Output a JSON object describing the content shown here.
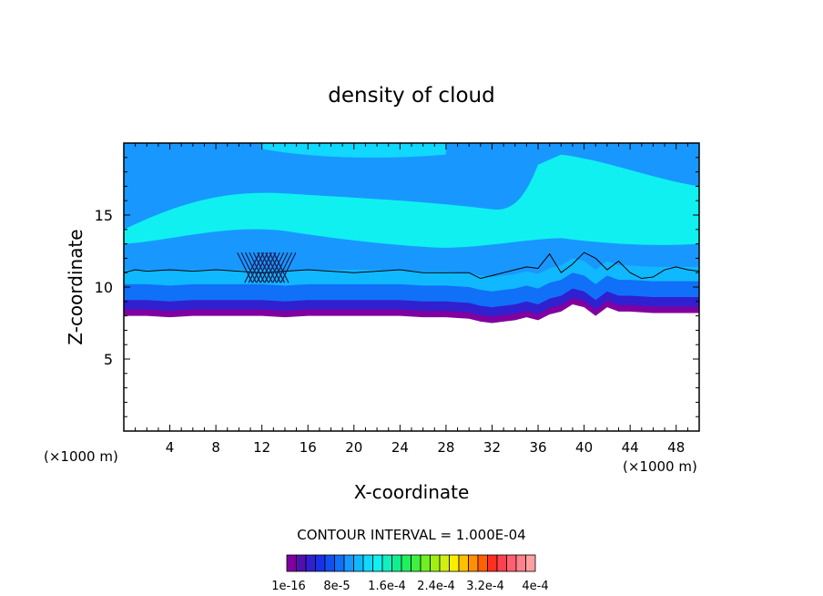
{
  "chart_data": {
    "type": "heatmap",
    "title": "density of cloud",
    "xlabel": "X-coordinate",
    "ylabel": "Z-coordinate",
    "x_unit_left": "(×1000 m)",
    "x_unit_right": "(×1000 m)",
    "xlim": [
      0,
      50
    ],
    "ylim": [
      0,
      20
    ],
    "x_ticks": [
      "4",
      "8",
      "12",
      "16",
      "20",
      "24",
      "28",
      "32",
      "36",
      "40",
      "44",
      "48"
    ],
    "y_ticks": [
      "5",
      "10",
      "15"
    ],
    "contour_interval_text": "CONTOUR INTERVAL = 1.000E-04",
    "colorbar_labels": [
      "1e-16",
      "8e-5",
      "1.6e-4",
      "2.4e-4",
      "3.2e-4",
      "4e-4"
    ],
    "colorbar_colors": [
      "#8000a0",
      "#5010b0",
      "#3020d0",
      "#1830e8",
      "#1050f0",
      "#1070f8",
      "#1898ff",
      "#10b8ff",
      "#10d8ff",
      "#10f0f0",
      "#10f0c0",
      "#10f090",
      "#20f060",
      "#40f040",
      "#70f020",
      "#a0f010",
      "#d0f010",
      "#f8f000",
      "#ffc000",
      "#ff9000",
      "#ff6000",
      "#ff3020",
      "#ff4050",
      "#ff6070",
      "#ff8090",
      "#ffa0a0"
    ],
    "layers": [
      {
        "level": "top",
        "color": "#1898ff"
      },
      {
        "level": "cyan",
        "color": "#10f0f0"
      },
      {
        "level": "mid",
        "color": "#1070f8"
      },
      {
        "level": "base",
        "color": "#8000a0"
      }
    ],
    "cloud_base_profile": {
      "x": [
        0,
        2,
        4,
        6,
        8,
        10,
        12,
        14,
        16,
        18,
        20,
        22,
        24,
        26,
        28,
        30,
        31,
        32,
        33,
        34,
        35,
        36,
        37,
        38,
        39,
        40,
        41,
        42,
        43,
        44,
        46,
        48,
        50
      ],
      "z": [
        8.0,
        8.0,
        7.9,
        8.0,
        8.0,
        8.0,
        8.0,
        7.9,
        8.0,
        8.0,
        8.0,
        8.0,
        8.0,
        7.9,
        7.9,
        7.8,
        7.6,
        7.5,
        7.6,
        7.7,
        7.9,
        7.7,
        8.1,
        8.3,
        8.8,
        8.6,
        8.0,
        8.6,
        8.3,
        8.3,
        8.2,
        8.2,
        8.2
      ]
    },
    "contour_line": {
      "x": [
        0,
        1,
        2,
        4,
        6,
        8,
        10,
        12,
        14,
        16,
        18,
        20,
        22,
        24,
        26,
        28,
        30,
        31,
        32,
        33,
        34,
        35,
        36,
        37,
        38,
        39,
        40,
        41,
        42,
        43,
        44,
        45,
        46,
        47,
        48,
        49,
        50
      ],
      "z": [
        11.0,
        11.2,
        11.1,
        11.2,
        11.1,
        11.2,
        11.1,
        11.0,
        11.1,
        11.2,
        11.1,
        11.0,
        11.1,
        11.2,
        11.0,
        11.0,
        11.0,
        10.6,
        10.8,
        11.0,
        11.2,
        11.4,
        11.3,
        12.3,
        11.0,
        11.6,
        12.4,
        12.0,
        11.2,
        11.8,
        11.0,
        10.6,
        10.7,
        11.2,
        11.4,
        11.2,
        11.1
      ]
    }
  }
}
